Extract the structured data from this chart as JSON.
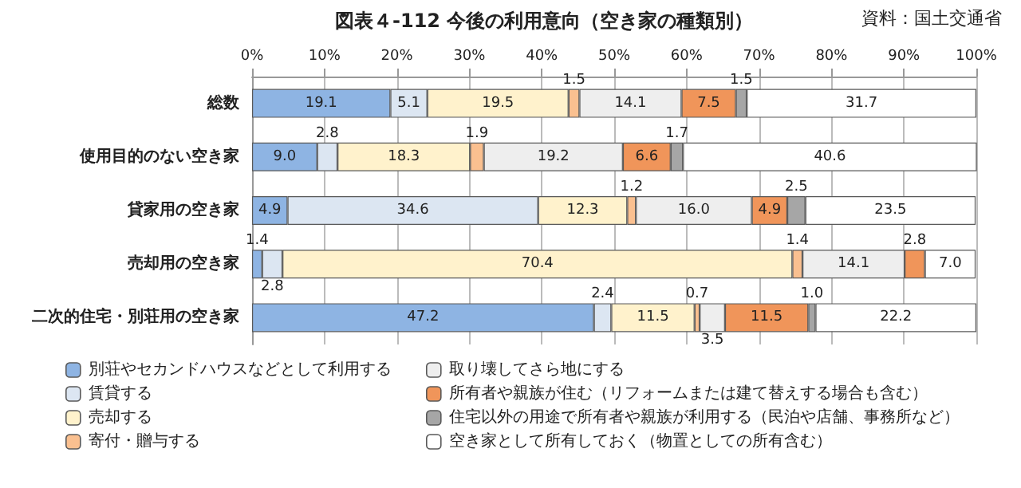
{
  "chart_data": {
    "type": "bar",
    "orientation": "horizontal",
    "stacked": true,
    "title": "図表４-112 今後の利用意向（空き家の種類別）",
    "annotations": [
      "資料：国土交通省"
    ],
    "categories": [
      "総数",
      "使用目的のない空き家",
      "貸家用の空き家",
      "売却用の空き家",
      "二次的住宅・別荘用の空き家"
    ],
    "series": [
      {
        "name": "別荘やセカンドハウスなどとして利用する",
        "color": "#8eb4e3",
        "values": [
          19.1,
          9.0,
          4.9,
          1.4,
          47.2
        ],
        "value_labels": [
          "19.1",
          "9.0",
          "4.9",
          "1.4",
          "47.2"
        ]
      },
      {
        "name": "賃貸する",
        "color": "#dce6f2",
        "values": [
          5.1,
          2.8,
          34.6,
          2.8,
          2.4
        ],
        "value_labels": [
          "5.1",
          "2.8",
          "34.6",
          "2.8",
          "2.4"
        ]
      },
      {
        "name": "売却する",
        "color": "#fff2cc",
        "values": [
          19.5,
          18.3,
          12.3,
          70.4,
          11.5
        ],
        "value_labels": [
          "19.5",
          "18.3",
          "12.3",
          "70.4",
          "11.5"
        ]
      },
      {
        "name": "寄付・贈与する",
        "color": "#fac090",
        "values": [
          1.5,
          1.9,
          1.2,
          1.4,
          0.7
        ],
        "value_labels": [
          "1.5",
          "1.9",
          "1.2",
          "1.4",
          "0.7"
        ]
      },
      {
        "name": "取り壊してさら地にする",
        "color": "#eeeeee",
        "values": [
          14.1,
          19.2,
          16.0,
          14.1,
          3.5
        ],
        "value_labels": [
          "14.1",
          "19.2",
          "16.0",
          "14.1",
          "3.5"
        ]
      },
      {
        "name": "所有者や親族が住む（リフォームまたは建て替えする場合も含む）",
        "color": "#f0955a",
        "values": [
          7.5,
          6.6,
          4.9,
          2.8,
          11.5
        ],
        "value_labels": [
          "7.5",
          "6.6",
          "4.9",
          "2.8",
          "11.5"
        ]
      },
      {
        "name": "住宅以外の用途で所有者や親族が利用する（民泊や店舗、事務所など）",
        "color": "#a6a6a6",
        "values": [
          1.5,
          1.7,
          2.5,
          null,
          1.0
        ],
        "value_labels": [
          "1.5",
          "1.7",
          "2.5",
          null,
          "1.0"
        ]
      },
      {
        "name": "空き家として所有しておく（物置としての所有含む）",
        "color": "#ffffff",
        "values": [
          31.7,
          40.6,
          23.5,
          7.0,
          22.2
        ],
        "value_labels": [
          "31.7",
          "40.6",
          "23.5",
          "7.0",
          "22.2"
        ]
      }
    ],
    "xlim": [
      0,
      100
    ],
    "xticks": [
      {
        "value": 0,
        "label": "0%"
      },
      {
        "value": 10,
        "label": "10%"
      },
      {
        "value": 20,
        "label": "20%"
      },
      {
        "value": 30,
        "label": "30%"
      },
      {
        "value": 40,
        "label": "40%"
      },
      {
        "value": 50,
        "label": "50%"
      },
      {
        "value": 60,
        "label": "60%"
      },
      {
        "value": 70,
        "label": "70%"
      },
      {
        "value": 80,
        "label": "80%"
      },
      {
        "value": 90,
        "label": "90%"
      },
      {
        "value": 100,
        "label": "100%"
      }
    ],
    "grid": "x",
    "legend": "bottom"
  }
}
